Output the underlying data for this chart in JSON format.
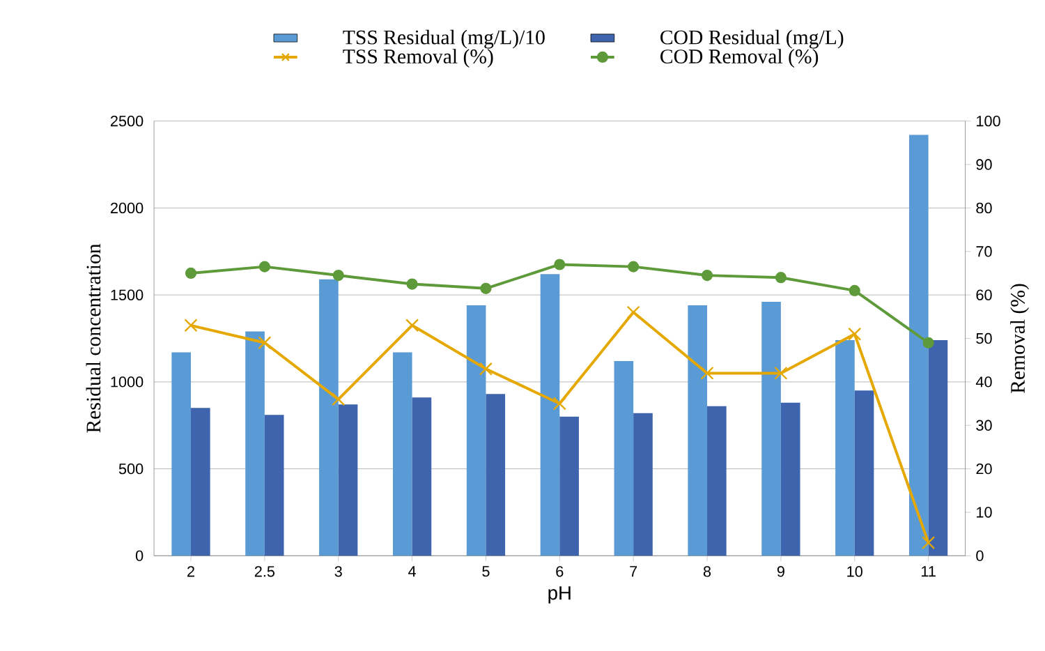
{
  "chart_data": {
    "type": "bar",
    "xlabel": "pH",
    "ylabel": "Residual concentration",
    "y2label": "Removal (%)",
    "categories": [
      "2",
      "2.5",
      "3",
      "4",
      "5",
      "6",
      "7",
      "8",
      "9",
      "10",
      "11"
    ],
    "series": [
      {
        "name": "TSS Residual (mg/L)/10",
        "color": "#5b9bd5",
        "values": [
          1170,
          1290,
          1590,
          1170,
          1440,
          1620,
          1120,
          1440,
          1460,
          1240,
          2420
        ]
      },
      {
        "name": "COD Residual  (mg/L)",
        "color": "#3d64ad",
        "values": [
          850,
          810,
          870,
          910,
          930,
          800,
          820,
          860,
          880,
          950,
          1240
        ]
      },
      {
        "name": "TSS Removal   (%)",
        "type": "line",
        "axis": "y2",
        "marker": "cross",
        "color": "#e5a800",
        "values": [
          53,
          49,
          36,
          53,
          43,
          35,
          56,
          42,
          42,
          51,
          3
        ]
      },
      {
        "name": "COD Removal   (%)",
        "type": "line",
        "axis": "y2",
        "marker": "circle",
        "color": "#5e9a3a",
        "values": [
          65,
          66.5,
          64.5,
          62.5,
          61.5,
          67,
          66.5,
          64.5,
          64,
          61,
          49
        ]
      }
    ],
    "ylim": [
      0,
      2500
    ],
    "yticks": [
      0,
      500,
      1000,
      1500,
      2000,
      2500
    ],
    "y2lim": [
      0,
      100
    ],
    "y2ticks": [
      0,
      10,
      20,
      30,
      40,
      50,
      60,
      70,
      80,
      90,
      100
    ],
    "grid": "y",
    "legend": "top"
  }
}
